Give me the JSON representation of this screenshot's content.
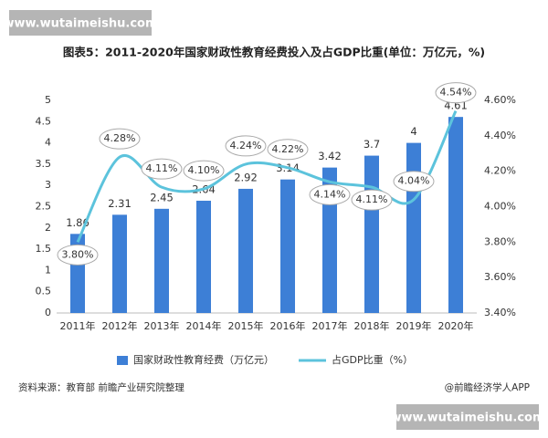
{
  "watermarks": [
    "www.wutaimeishu.com",
    "www.wutaimeishu.com"
  ],
  "chart_data": {
    "type": "bar-line",
    "title": "图表5：2011-2020年国家财政性教育经费投入及占GDP比重(单位：万亿元，%)",
    "categories": [
      "2011年",
      "2012年",
      "2013年",
      "2014年",
      "2015年",
      "2016年",
      "2017年",
      "2018年",
      "2019年",
      "2020年"
    ],
    "series": [
      {
        "name": "国家财政性教育经费（万亿元）",
        "type": "bar",
        "color": "#3d7fd6",
        "values": [
          1.86,
          2.31,
          2.45,
          2.64,
          2.92,
          3.14,
          3.42,
          3.7,
          4,
          4.61
        ]
      },
      {
        "name": "占GDP比重（%）",
        "type": "line",
        "axis": "y2",
        "color": "#5cc3dc",
        "values": [
          3.8,
          4.28,
          4.11,
          4.1,
          4.24,
          4.22,
          4.14,
          4.11,
          4.04,
          4.54
        ],
        "value_labels": [
          "3.80%",
          "4.28%",
          "4.11%",
          "4.10%",
          "4.24%",
          "4.22%",
          "4.14%",
          "4.11%",
          "4.04%",
          "4.54%"
        ]
      }
    ],
    "ylim": [
      0,
      5
    ],
    "yticks": [
      0,
      0.5,
      1,
      1.5,
      2,
      2.5,
      3,
      3.5,
      4,
      4.5,
      5
    ],
    "y2lim": [
      3.4,
      4.6
    ],
    "y2ticks": [
      {
        "value": 3.4,
        "label": "3.40%"
      },
      {
        "value": 3.6,
        "label": "3.60%"
      },
      {
        "value": 3.8,
        "label": "3.80%"
      },
      {
        "value": 4.0,
        "label": "4.00%"
      },
      {
        "value": 4.2,
        "label": "4.20%"
      },
      {
        "value": 4.4,
        "label": "4.40%"
      },
      {
        "value": 4.6,
        "label": "4.60%"
      }
    ],
    "source": "资料来源：教育部 前瞻产业研究院整理",
    "credit": "@前瞻经济学人APP"
  }
}
